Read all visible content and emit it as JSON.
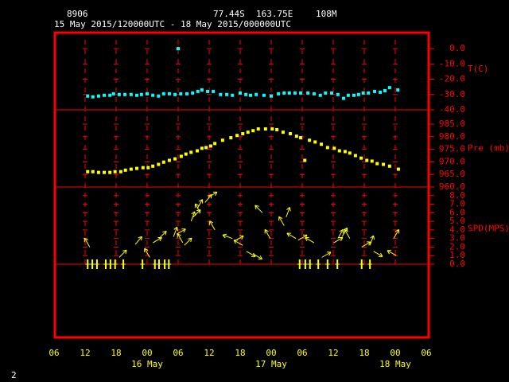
{
  "header": {
    "station": "8906",
    "lat": "77.44S",
    "lon": "163.75E",
    "elev": "108M",
    "period": "15 May 2015/120000UTC - 18 May 2015/000000UTC"
  },
  "footer": "2",
  "x_axis": {
    "xlim": [
      6,
      78
    ],
    "xticks": [
      {
        "value": 6,
        "label": "06"
      },
      12,
      18,
      {
        "value": 24,
        "label": "00"
      },
      {
        "value": 30,
        "label": "06"
      },
      {
        "value": 36,
        "label": "12"
      },
      {
        "value": 42,
        "label": "18"
      },
      {
        "value": 48,
        "label": "00"
      },
      {
        "value": 54,
        "label": "06"
      },
      {
        "value": 60,
        "label": "12"
      },
      {
        "value": 66,
        "label": "18"
      },
      {
        "value": 72,
        "label": "00"
      },
      {
        "value": 78,
        "label": "06"
      }
    ],
    "date_labels": [
      {
        "value": 24,
        "label": "16 May"
      },
      {
        "value": 48,
        "label": "17 May"
      },
      {
        "value": 72,
        "label": "18 May"
      }
    ]
  },
  "chart_data": [
    {
      "type": "scatter",
      "ylabel": "T(C)",
      "color": "#00ffff",
      "ylim": [
        -40,
        11
      ],
      "yticks": [
        {
          "value": 0,
          "label": "0.0"
        },
        {
          "value": -10,
          "label": "-10.0"
        },
        {
          "value": -20,
          "label": "-20.0"
        },
        {
          "value": -30,
          "label": "-30.0"
        },
        {
          "value": -40,
          "label": "-40.0"
        }
      ],
      "x": [
        12.5,
        13.5,
        14.6,
        15.7,
        16.8,
        17.5,
        18.6,
        19.7,
        20.9,
        22,
        22.9,
        24,
        25.1,
        26.2,
        27.2,
        28.3,
        29.4,
        30,
        30.5,
        31.7,
        32.8,
        33.8,
        34.6,
        35.7,
        36.8,
        38.2,
        39.4,
        40.5,
        42,
        43.1,
        44,
        45.1,
        46.6,
        48,
        49.4,
        50.5,
        51.5,
        52.6,
        53.7,
        55.1,
        56.3,
        57.5,
        58.5,
        59.7,
        60.9,
        62,
        62.9,
        64,
        64.9,
        65.8,
        66.8,
        68,
        69.1,
        70,
        70.9,
        72.5
      ],
      "values": [
        -31,
        -31.5,
        -31,
        -30.5,
        -30.5,
        -29.5,
        -30,
        -30,
        -30,
        -30.5,
        -30,
        -29.5,
        -30.5,
        -31,
        -29.5,
        -29.5,
        -30,
        0,
        -29.5,
        -29.5,
        -29,
        -28,
        -27,
        -28,
        -28,
        -30,
        -30,
        -30.5,
        -29,
        -30,
        -30.5,
        -30,
        -30.5,
        -31,
        -29.5,
        -29,
        -29,
        -29,
        -29,
        -29,
        -29.5,
        -30.5,
        -29,
        -29,
        -30,
        -32.5,
        -30.5,
        -30.5,
        -30,
        -29,
        -29,
        -28,
        -28.5,
        -27.5,
        -25.5,
        -27
      ]
    },
    {
      "type": "scatter",
      "ylabel": "Pre (mb)",
      "color": "#ffff00",
      "ylim": [
        960,
        990.7
      ],
      "yticks": [
        {
          "value": 985,
          "label": "985.0"
        },
        {
          "value": 980,
          "label": "980.0"
        },
        {
          "value": 975,
          "label": "975.0"
        },
        {
          "value": 970,
          "label": "970.0"
        },
        {
          "value": 965,
          "label": "965.0"
        },
        {
          "value": 960,
          "label": "960.0"
        }
      ],
      "x": [
        12.5,
        13.5,
        14.6,
        15.7,
        16.8,
        17.8,
        18.9,
        19.8,
        20.9,
        22,
        23.2,
        24.2,
        25.1,
        26.2,
        27.2,
        28.3,
        29.4,
        30.6,
        31.5,
        32.5,
        33.7,
        34.6,
        35.4,
        36.3,
        37.1,
        38.6,
        40.2,
        41.4,
        42.5,
        43.5,
        44.5,
        45.5,
        46.9,
        48.2,
        49.1,
        50.3,
        51.7,
        52.9,
        53.7,
        54.5,
        55.4,
        56.5,
        57.7,
        58.9,
        60.2,
        61.2,
        62.3,
        63.2,
        64.3,
        65.4,
        66.5,
        67.5,
        68.5,
        69.7,
        70.9,
        72.6
      ],
      "values": [
        966.1,
        966.1,
        965.8,
        965.8,
        965.8,
        966.1,
        966.1,
        966.7,
        967.1,
        967.4,
        967.7,
        967.7,
        968.3,
        969,
        969.9,
        970.6,
        971.2,
        972.2,
        973.1,
        973.8,
        974.4,
        975.4,
        975.7,
        976.3,
        977.3,
        978.6,
        979.6,
        980.5,
        981.2,
        981.8,
        982.4,
        983.1,
        983.1,
        983.1,
        982.8,
        981.8,
        981.2,
        980.2,
        979.6,
        970.6,
        978.6,
        977.9,
        977,
        975.7,
        975.4,
        974.4,
        974.1,
        973.5,
        972.5,
        971.5,
        970.6,
        970.3,
        969.3,
        969,
        968.3,
        967.1
      ]
    },
    {
      "type": "wind",
      "ylabel": "SPD(MPS)",
      "color": "#ffff00",
      "ylim": [
        0,
        9
      ],
      "yticks": [
        {
          "value": 8,
          "label": "8.0"
        },
        {
          "value": 7,
          "label": "7.0"
        },
        {
          "value": 6,
          "label": "6.0"
        },
        {
          "value": 5,
          "label": "5.0"
        },
        {
          "value": 4,
          "label": "4.0"
        },
        {
          "value": 3,
          "label": "3.0"
        },
        {
          "value": 2,
          "label": "2.0"
        },
        {
          "value": 1,
          "label": "1.0"
        },
        {
          "value": 0,
          "label": "0.0"
        }
      ],
      "x": [
        12.9,
        18.6,
        21.7,
        24.5,
        25.1,
        26.3,
        29.1,
        29.7,
        30.9,
        31.2,
        32.5,
        32.9,
        33.7,
        34.3,
        35.2,
        35.8,
        37.1,
        40.5,
        40.9,
        42.5,
        43.2,
        44.5,
        46.3,
        47.8,
        50.5,
        50.9,
        52.8,
        53.2,
        56.3,
        57.8,
        60.1,
        60.9,
        61.7,
        63.2,
        65.5,
        67.1,
        67.8,
        71.7,
        72.2,
        12.5,
        13.4,
        14.3,
        16,
        16.9,
        17.8,
        19.4,
        23.1,
        25.5,
        26.3,
        27.4,
        28.2,
        53.5,
        54.6,
        55.5,
        57.1,
        58.9,
        60.8,
        65.5,
        67.1
      ],
      "values": [
        2,
        0.8,
        2.3,
        0.8,
        2.5,
        3,
        3.2,
        3.5,
        2.5,
        2.2,
        5,
        5.5,
        6.5,
        6,
        7.2,
        7.8,
        4,
        3,
        2.7,
        2.2,
        1.5,
        1.2,
        6,
        3,
        4.5,
        5.5,
        3,
        2.8,
        2.5,
        0.8,
        2.5,
        3,
        3.2,
        3,
        2,
        2.2,
        1.5,
        3,
        1,
        0,
        0,
        0,
        0,
        0,
        0,
        0,
        0,
        0,
        0,
        0,
        0,
        0,
        0,
        0,
        0,
        0,
        0,
        0,
        0
      ],
      "directions": [
        330,
        45,
        40,
        330,
        60,
        45,
        20,
        60,
        330,
        45,
        20,
        45,
        30,
        330,
        40,
        60,
        330,
        290,
        60,
        300,
        120,
        120,
        315,
        330,
        330,
        20,
        300,
        60,
        300,
        60,
        60,
        30,
        30,
        330,
        60,
        20,
        120,
        30,
        300,
        null,
        null,
        null,
        null,
        null,
        null,
        null,
        null,
        null,
        null,
        null,
        null,
        null,
        null,
        null,
        null,
        null,
        null,
        null,
        null
      ]
    }
  ]
}
